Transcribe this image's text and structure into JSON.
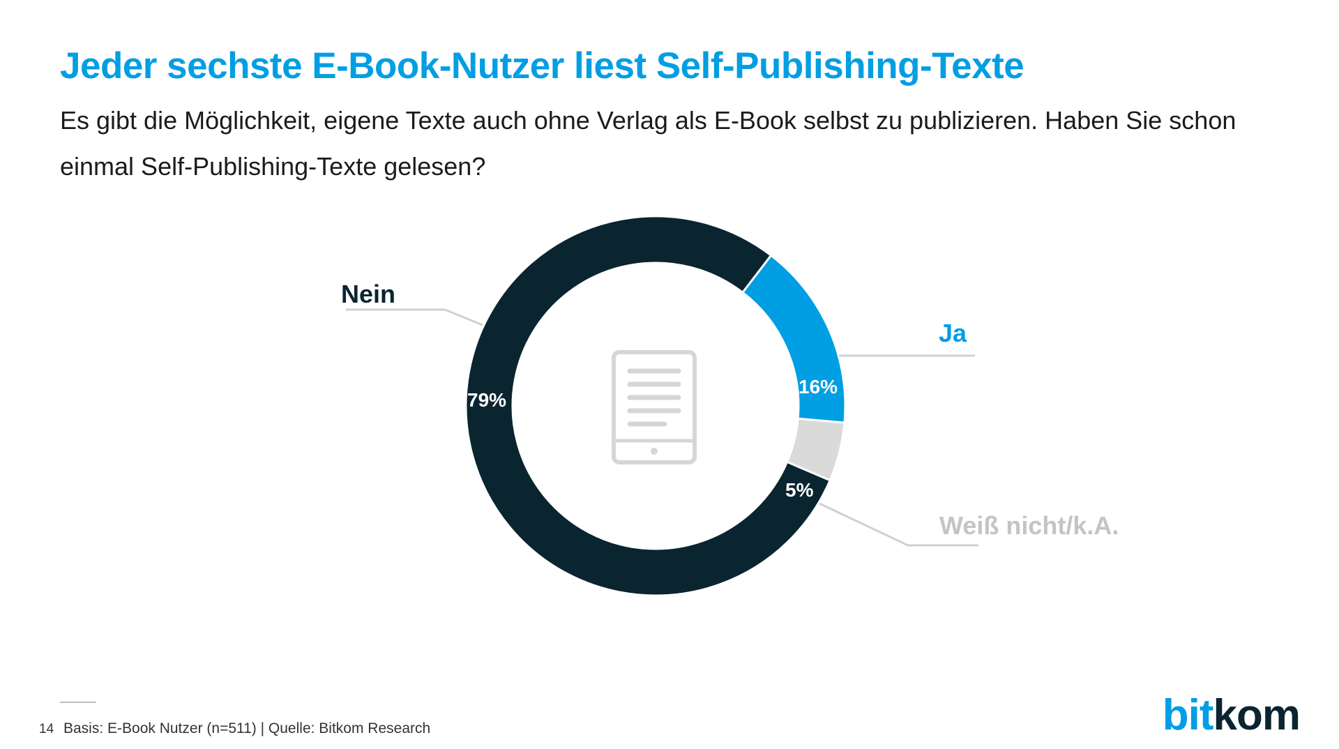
{
  "header": {
    "title": "Jeder sechste E-Book-Nutzer liest Self-Publishing-Texte",
    "subtitle": "Es gibt die Möglichkeit, eigene Texte auch ohne Verlag als E-Book selbst zu publizieren. Haben Sie schon einmal Self-Publishing-Texte gelesen?"
  },
  "chart_data": {
    "type": "pie",
    "variant": "donut",
    "start_angle_deg": 37.5,
    "center_icon": "e-reader-tablet-icon",
    "slices": [
      {
        "label": "Ja",
        "value": 16,
        "value_label": "16%",
        "color": "#009ee3",
        "label_color": "#009ee3"
      },
      {
        "label": "Weiß nicht/k.A.",
        "value": 5,
        "value_label": "5%",
        "color": "#dadada",
        "label_color": "#c4c4c4"
      },
      {
        "label": "Nein",
        "value": 79,
        "value_label": "79%",
        "color": "#0a2530",
        "label_color": "#0a2530"
      }
    ]
  },
  "footer": {
    "page_number": "14",
    "source": "Basis: E-Book Nutzer (n=511) | Quelle: Bitkom Research"
  },
  "logo": {
    "part1": "bit",
    "part2": "kom"
  }
}
